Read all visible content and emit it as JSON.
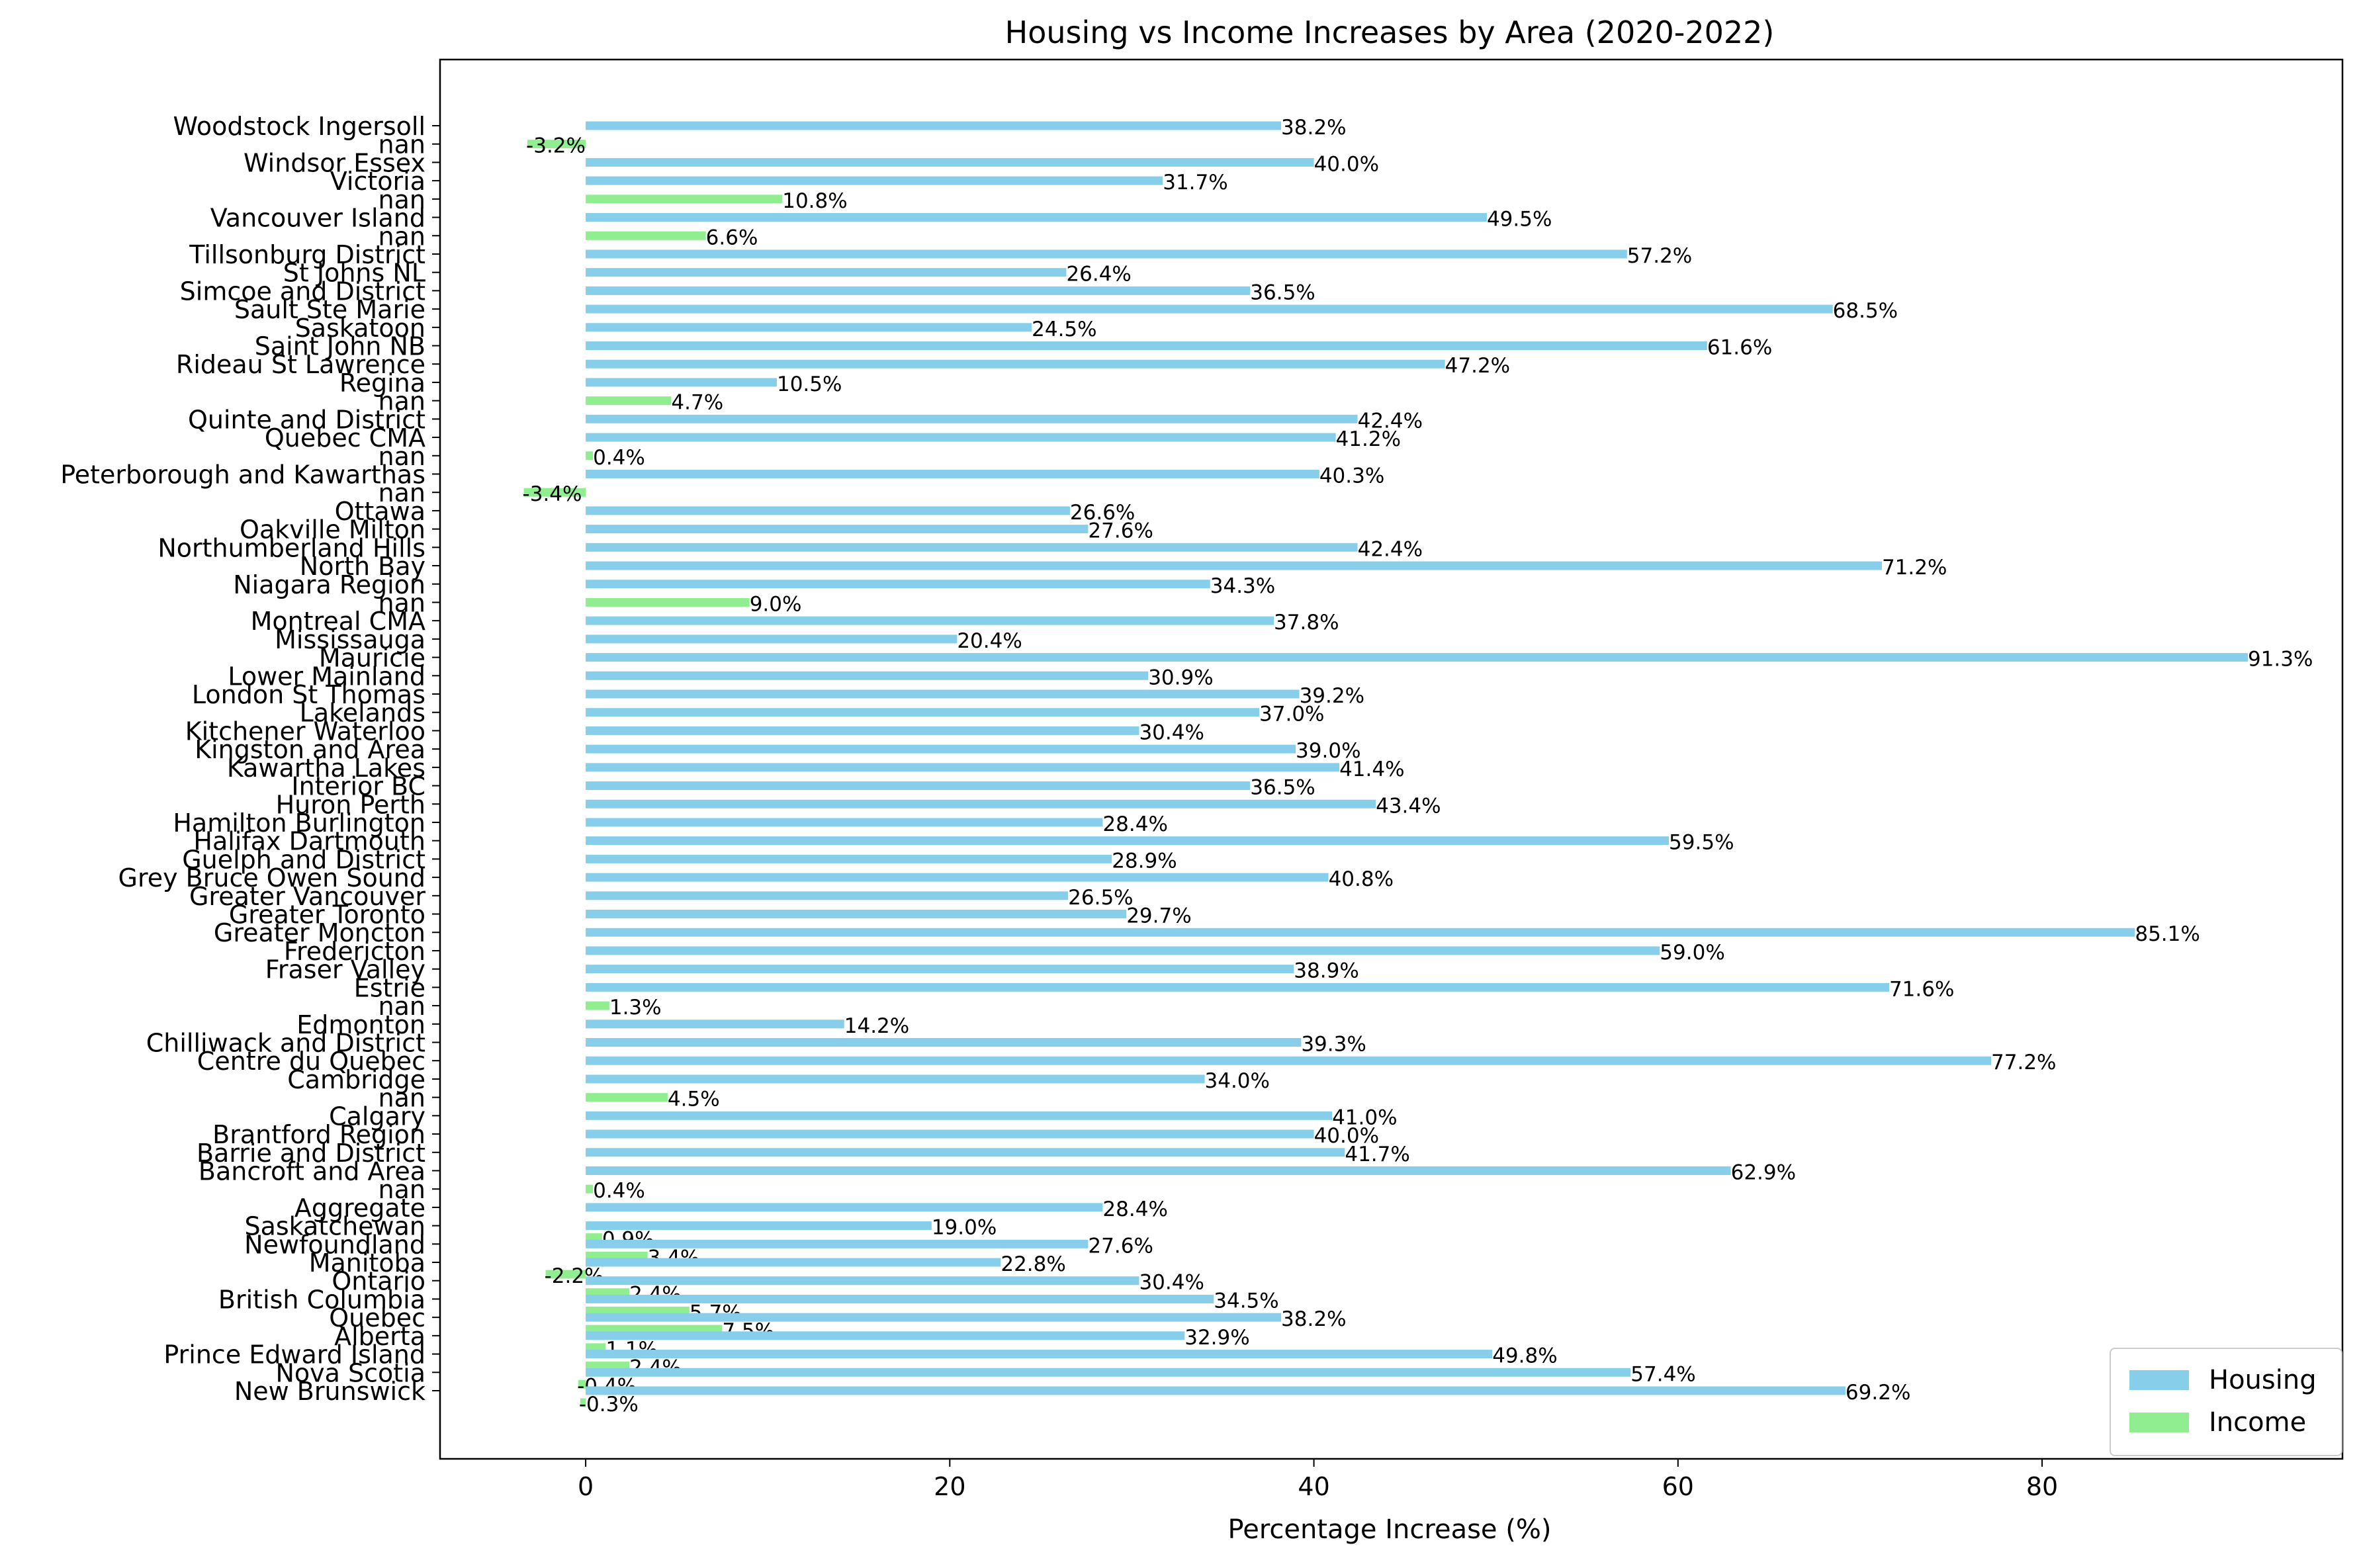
{
  "chart_data": {
    "type": "bar",
    "orientation": "horizontal",
    "title": "Housing vs Income Increases by Area (2020-2022)",
    "xlabel": "Percentage Increase (%)",
    "ylabel": "",
    "xlim": [
      -8,
      96.5
    ],
    "xticks": [
      0,
      20,
      40,
      60,
      80
    ],
    "grid": false,
    "legend_position": "lower-right",
    "series": [
      {
        "name": "Housing",
        "color": "#87CEEB"
      },
      {
        "name": "Income",
        "color": "#90EE90"
      }
    ],
    "value_format": "{v}%",
    "categories": [
      {
        "label": "Woodstock Ingersoll",
        "series": "Housing",
        "value": 38.2
      },
      {
        "label": "nan",
        "series": "Income",
        "value": -3.2
      },
      {
        "label": "Windsor Essex",
        "series": "Housing",
        "value": 40.0
      },
      {
        "label": "Victoria",
        "series": "Housing",
        "value": 31.7
      },
      {
        "label": "nan",
        "series": "Income",
        "value": 10.8
      },
      {
        "label": "Vancouver Island",
        "series": "Housing",
        "value": 49.5
      },
      {
        "label": "nan",
        "series": "Income",
        "value": 6.6
      },
      {
        "label": "Tillsonburg District",
        "series": "Housing",
        "value": 57.2
      },
      {
        "label": "St Johns NL",
        "series": "Housing",
        "value": 26.4
      },
      {
        "label": "Simcoe and District",
        "series": "Housing",
        "value": 36.5
      },
      {
        "label": "Sault Ste Marie",
        "series": "Housing",
        "value": 68.5
      },
      {
        "label": "Saskatoon",
        "series": "Housing",
        "value": 24.5
      },
      {
        "label": "Saint John NB",
        "series": "Housing",
        "value": 61.6
      },
      {
        "label": "Rideau St Lawrence",
        "series": "Housing",
        "value": 47.2
      },
      {
        "label": "Regina",
        "series": "Housing",
        "value": 10.5
      },
      {
        "label": "nan",
        "series": "Income",
        "value": 4.7
      },
      {
        "label": "Quinte and District",
        "series": "Housing",
        "value": 42.4
      },
      {
        "label": "Quebec CMA",
        "series": "Housing",
        "value": 41.2
      },
      {
        "label": "nan",
        "series": "Income",
        "value": 0.4
      },
      {
        "label": "Peterborough and Kawarthas",
        "series": "Housing",
        "value": 40.3
      },
      {
        "label": "nan",
        "series": "Income",
        "value": -3.4
      },
      {
        "label": "Ottawa",
        "series": "Housing",
        "value": 26.6
      },
      {
        "label": "Oakville Milton",
        "series": "Housing",
        "value": 27.6
      },
      {
        "label": "Northumberland Hills",
        "series": "Housing",
        "value": 42.4
      },
      {
        "label": "North Bay",
        "series": "Housing",
        "value": 71.2
      },
      {
        "label": "Niagara Region",
        "series": "Housing",
        "value": 34.3
      },
      {
        "label": "nan",
        "series": "Income",
        "value": 9.0
      },
      {
        "label": "Montreal CMA",
        "series": "Housing",
        "value": 37.8
      },
      {
        "label": "Mississauga",
        "series": "Housing",
        "value": 20.4
      },
      {
        "label": "Mauricie",
        "series": "Housing",
        "value": 91.3
      },
      {
        "label": "Lower Mainland",
        "series": "Housing",
        "value": 30.9
      },
      {
        "label": "London St Thomas",
        "series": "Housing",
        "value": 39.2
      },
      {
        "label": "Lakelands",
        "series": "Housing",
        "value": 37.0
      },
      {
        "label": "Kitchener Waterloo",
        "series": "Housing",
        "value": 30.4
      },
      {
        "label": "Kingston and Area",
        "series": "Housing",
        "value": 39.0
      },
      {
        "label": "Kawartha Lakes",
        "series": "Housing",
        "value": 41.4
      },
      {
        "label": "Interior BC",
        "series": "Housing",
        "value": 36.5
      },
      {
        "label": "Huron Perth",
        "series": "Housing",
        "value": 43.4
      },
      {
        "label": "Hamilton Burlington",
        "series": "Housing",
        "value": 28.4
      },
      {
        "label": "Halifax Dartmouth",
        "series": "Housing",
        "value": 59.5
      },
      {
        "label": "Guelph and District",
        "series": "Housing",
        "value": 28.9
      },
      {
        "label": "Grey Bruce Owen Sound",
        "series": "Housing",
        "value": 40.8
      },
      {
        "label": "Greater Vancouver",
        "series": "Housing",
        "value": 26.5
      },
      {
        "label": "Greater Toronto",
        "series": "Housing",
        "value": 29.7
      },
      {
        "label": "Greater Moncton",
        "series": "Housing",
        "value": 85.1
      },
      {
        "label": "Fredericton",
        "series": "Housing",
        "value": 59.0
      },
      {
        "label": "Fraser Valley",
        "series": "Housing",
        "value": 38.9
      },
      {
        "label": "Estrie",
        "series": "Housing",
        "value": 71.6
      },
      {
        "label": "nan",
        "series": "Income",
        "value": 1.3
      },
      {
        "label": "Edmonton",
        "series": "Housing",
        "value": 14.2
      },
      {
        "label": "Chilliwack and District",
        "series": "Housing",
        "value": 39.3
      },
      {
        "label": "Centre du Quebec",
        "series": "Housing",
        "value": 77.2
      },
      {
        "label": "Cambridge",
        "series": "Housing",
        "value": 34.0
      },
      {
        "label": "nan",
        "series": "Income",
        "value": 4.5
      },
      {
        "label": "Calgary",
        "series": "Housing",
        "value": 41.0
      },
      {
        "label": "Brantford Region",
        "series": "Housing",
        "value": 40.0
      },
      {
        "label": "Barrie and District",
        "series": "Housing",
        "value": 41.7
      },
      {
        "label": "Bancroft and Area",
        "series": "Housing",
        "value": 62.9
      },
      {
        "label": "nan",
        "series": "Income",
        "value": 0.4
      },
      {
        "label": "Aggregate",
        "series": "Housing",
        "value": 28.4
      },
      {
        "label": "Saskatchewan",
        "series": "Housing",
        "value": 19.0,
        "income": 0.9
      },
      {
        "label": "Newfoundland",
        "series": "Housing",
        "value": 27.6,
        "income": 3.4
      },
      {
        "label": "Manitoba",
        "series": "Housing",
        "value": 22.8,
        "income": -2.2
      },
      {
        "label": "Ontario",
        "series": "Housing",
        "value": 30.4,
        "income": 2.4
      },
      {
        "label": "British Columbia",
        "series": "Housing",
        "value": 34.5,
        "income": 5.7
      },
      {
        "label": "Quebec",
        "series": "Housing",
        "value": 38.2,
        "income": 7.5
      },
      {
        "label": "Alberta",
        "series": "Housing",
        "value": 32.9,
        "income": 1.1
      },
      {
        "label": "Prince Edward Island",
        "series": "Housing",
        "value": 49.8,
        "income": 2.4
      },
      {
        "label": "Nova Scotia",
        "series": "Housing",
        "value": 57.4,
        "income": -0.4
      },
      {
        "label": "New Brunswick",
        "series": "Housing",
        "value": 69.2,
        "income": -0.3
      }
    ]
  },
  "legend": {
    "housing_label": "Housing",
    "income_label": "Income"
  }
}
